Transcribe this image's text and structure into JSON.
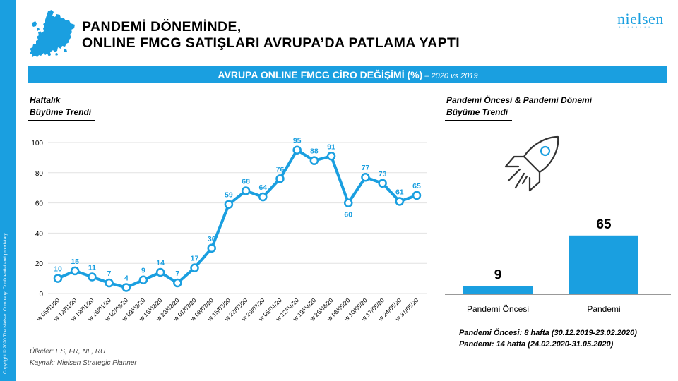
{
  "header": {
    "title_line1": "PANDEMİ DÖNEMİNDE,",
    "title_line2": "ONLINE FMCG SATIŞLARI AVRUPA’DA PATLAMA YAPTI",
    "brand": "nielsen",
    "brand_dots": "••••••••"
  },
  "banner": {
    "main": "AVRUPA ONLINE FMCG CİRO DEĞİŞİMİ (%)",
    "sub": " – 2020 vs 2019"
  },
  "left_section": {
    "label_line1": "Haftalık",
    "label_line2": "Büyüme Trendi"
  },
  "right_section": {
    "label_line1": "Pandemi Öncesi & Pandemi Dönemi",
    "label_line2": "Büyüme Trendi"
  },
  "footnotes": {
    "pre_label": "Pandemi Öncesi:",
    "pre_text": " 8 hafta (30.12.2019-23.02.2020)",
    "pan_label": "Pandemi:",
    "pan_text": " 14 hafta (24.02.2020-31.05.2020)",
    "countries": "Ülkeler: ES, FR, NL, RU",
    "source": "Kaynak:  Nielsen Strategic Planner"
  },
  "copyright": "Copyright © 2020 The Nielsen Company. Confidential and proprietary.",
  "colors": {
    "accent": "#1a9fe0",
    "text": "#000000"
  },
  "chart_data": [
    {
      "type": "line",
      "title": "Haftalık Büyüme Trendi",
      "xlabel": "",
      "ylabel": "",
      "ylim": [
        0,
        100
      ],
      "yticks": [
        0,
        20,
        40,
        60,
        80,
        100
      ],
      "grid": true,
      "categories": [
        "w 05/01/20",
        "w 12/01/20",
        "w 19/01/20",
        "w 26/01/20",
        "w 02/02/20",
        "w 09/02/20",
        "w 16/02/20",
        "w 23/02/20",
        "w 01/03/20",
        "w 08/03/20",
        "w 15/03/20",
        "w 22/03/20",
        "w 29/03/20",
        "w 05/04/20",
        "w 12/04/20",
        "w 19/04/20",
        "w 26/04/20",
        "w 03/05/20",
        "w 10/05/20",
        "w 17/05/20",
        "w 24/05/20",
        "w 31/05/20"
      ],
      "series": [
        {
          "name": "Online FMCG ciro değişimi (%)",
          "values": [
            10,
            15,
            11,
            7,
            4,
            9,
            14,
            7,
            17,
            30,
            59,
            68,
            64,
            76,
            95,
            88,
            91,
            60,
            77,
            73,
            61,
            65
          ]
        }
      ]
    },
    {
      "type": "bar",
      "title": "Pandemi Öncesi & Pandemi Dönemi Büyüme Trendi",
      "categories": [
        "Pandemi Öncesi",
        "Pandemi"
      ],
      "values": [
        9,
        65
      ],
      "xlabel": "",
      "ylabel": ""
    }
  ]
}
